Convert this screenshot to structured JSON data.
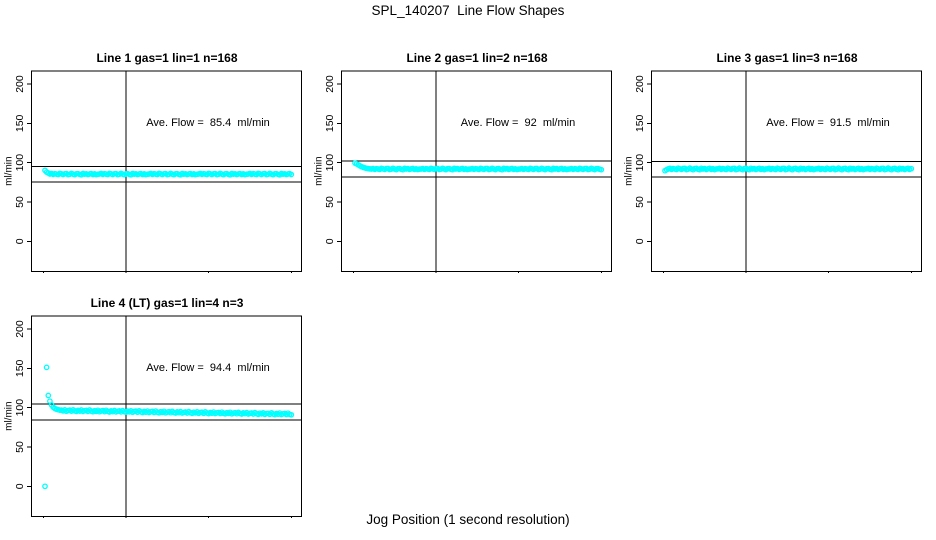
{
  "figure": {
    "title": "SPL_140207  Line Flow Shapes",
    "xlabel": "Jog Position (1 second resolution)",
    "ylabel": "ml/min",
    "point_color": "#00FFFF",
    "line_color": "#000000"
  },
  "chart_data": [
    {
      "type": "scatter",
      "title": "Line 1 gas=1 lin=1 n=168",
      "annotation": "Ave. Flow =  85.4  ml/min",
      "ave_flow": 85.4,
      "ylabel": "ml/min",
      "xticks": [
        0,
        50,
        100,
        150
      ],
      "yticks": [
        0,
        50,
        100,
        150,
        200
      ],
      "xlim": [
        -7,
        156
      ],
      "ylim": [
        -38,
        216
      ],
      "grid": false,
      "legend": "none",
      "vline_x": 50,
      "hlines": [
        95.4,
        75.4
      ],
      "x_rule": {
        "start": 1,
        "step": 1,
        "count": 150
      },
      "y": [
        90.2,
        88.0,
        86.8,
        85.6,
        86.2,
        85.1,
        86.0,
        85.4,
        84.9,
        86.4,
        85.7,
        85.0,
        85.9,
        86.1,
        84.8,
        85.3,
        86.3,
        85.5,
        84.7,
        85.8,
        86.0,
        85.2,
        84.6,
        86.2,
        85.4,
        85.9,
        84.9,
        85.6,
        86.1,
        85.0,
        85.7,
        84.8,
        85.3,
        85.6,
        86.2,
        85.1,
        86.0,
        85.4,
        84.9,
        86.4,
        85.7,
        85.0,
        85.9,
        86.1,
        84.8,
        85.3,
        86.3,
        85.5,
        84.7,
        85.8,
        86.0,
        85.2,
        84.6,
        86.2,
        85.4,
        85.9,
        84.9,
        85.6,
        86.1,
        85.0,
        85.7,
        84.8,
        85.3,
        85.6,
        86.2,
        85.1,
        86.0,
        85.4,
        84.9,
        86.4,
        85.7,
        85.0,
        85.9,
        86.1,
        84.8,
        85.3,
        86.3,
        85.5,
        84.7,
        85.8,
        86.0,
        85.2,
        84.6,
        86.2,
        85.4,
        85.9,
        84.9,
        85.6,
        86.1,
        85.0,
        85.7,
        84.8,
        85.3,
        85.6,
        86.2,
        85.1,
        86.0,
        85.4,
        84.9,
        86.4,
        85.7,
        85.0,
        85.9,
        86.1,
        84.8,
        85.3,
        86.3,
        85.5,
        84.7,
        85.8,
        86.0,
        85.2,
        84.6,
        86.2,
        85.4,
        85.9,
        84.9,
        85.6,
        86.1,
        85.0,
        85.7,
        84.8,
        85.3,
        85.6,
        86.2,
        85.1,
        86.0,
        85.4,
        84.9,
        86.4,
        85.7,
        85.0,
        85.9,
        86.1,
        84.8,
        85.3,
        86.3,
        85.5,
        84.7,
        85.8,
        86.0,
        85.2,
        84.6,
        86.2,
        85.4,
        85.9,
        84.9,
        85.6,
        86.1,
        85.0
      ]
    },
    {
      "type": "scatter",
      "title": "Line 2 gas=1 lin=2 n=168",
      "annotation": "Ave. Flow =  92  ml/min",
      "ave_flow": 92,
      "ylabel": "ml/min",
      "xticks": [
        0,
        50,
        100,
        150
      ],
      "yticks": [
        0,
        50,
        100,
        150,
        200
      ],
      "xlim": [
        -7,
        156
      ],
      "ylim": [
        -38,
        216
      ],
      "grid": false,
      "legend": "none",
      "vline_x": 50,
      "hlines": [
        102,
        82
      ],
      "x_rule": {
        "start": 1,
        "step": 1,
        "count": 150
      },
      "y": [
        99.4,
        98.6,
        97.3,
        96.0,
        94.9,
        94.0,
        93.3,
        92.8,
        92.4,
        92.1,
        92.0,
        92.5,
        91.6,
        92.3,
        91.9,
        91.4,
        92.7,
        92.1,
        91.5,
        92.4,
        92.6,
        91.3,
        91.8,
        92.8,
        92.0,
        91.2,
        92.3,
        92.5,
        91.7,
        91.1,
        92.7,
        91.9,
        92.4,
        91.4,
        92.1,
        92.6,
        91.5,
        92.2,
        91.3,
        91.8,
        92.0,
        92.5,
        91.6,
        92.3,
        91.9,
        91.4,
        92.7,
        92.1,
        91.5,
        92.4,
        92.6,
        91.3,
        91.8,
        92.8,
        92.0,
        91.2,
        92.3,
        92.5,
        91.7,
        91.1,
        92.7,
        91.9,
        92.4,
        91.4,
        92.1,
        92.6,
        91.5,
        92.2,
        91.3,
        91.8,
        92.0,
        92.5,
        91.6,
        92.3,
        91.9,
        91.4,
        92.7,
        92.1,
        91.5,
        92.4,
        92.6,
        91.3,
        91.8,
        92.8,
        92.0,
        91.2,
        92.3,
        92.5,
        91.7,
        91.1,
        92.7,
        91.9,
        92.4,
        91.4,
        92.1,
        92.6,
        91.5,
        92.2,
        91.3,
        91.8,
        92.0,
        92.5,
        91.6,
        92.3,
        91.9,
        91.4,
        92.7,
        92.1,
        91.5,
        92.4,
        92.6,
        91.3,
        91.8,
        92.8,
        92.0,
        91.2,
        92.3,
        92.5,
        91.7,
        91.1,
        92.7,
        91.9,
        92.4,
        91.4,
        92.1,
        92.6,
        91.5,
        92.2,
        91.3,
        91.8,
        92.0,
        92.5,
        91.6,
        92.3,
        91.9,
        91.4,
        92.7,
        92.1,
        91.5,
        92.4,
        92.6,
        91.3,
        91.8,
        92.8,
        92.0,
        91.2,
        92.3,
        92.5,
        91.7,
        91.1
      ]
    },
    {
      "type": "scatter",
      "title": "Line 3 gas=1 lin=3 n=168",
      "annotation": "Ave. Flow =  91.5  ml/min",
      "ave_flow": 91.5,
      "ylabel": "ml/min",
      "xticks": [
        0,
        50,
        100,
        150
      ],
      "yticks": [
        0,
        50,
        100,
        150,
        200
      ],
      "xlim": [
        -7,
        156
      ],
      "ylim": [
        -38,
        216
      ],
      "grid": false,
      "legend": "none",
      "vline_x": 50,
      "hlines": [
        101.5,
        81.5
      ],
      "x_rule": {
        "start": 1,
        "step": 1,
        "count": 150
      },
      "y": [
        89.8,
        91.0,
        92.1,
        92.7,
        91.5,
        92.5,
        91.9,
        91.3,
        93.0,
        92.2,
        91.4,
        92.6,
        92.9,
        91.2,
        91.8,
        93.1,
        92.0,
        91.1,
        92.4,
        92.8,
        91.7,
        91.0,
        92.9,
        92.0,
        92.5,
        91.3,
        92.2,
        92.8,
        91.4,
        92.3,
        91.2,
        91.9,
        92.1,
        92.7,
        91.5,
        92.5,
        91.9,
        91.3,
        93.0,
        92.2,
        91.4,
        92.6,
        92.9,
        91.2,
        91.8,
        93.1,
        92.0,
        91.1,
        92.4,
        92.8,
        91.7,
        91.0,
        92.9,
        92.0,
        92.5,
        91.3,
        92.2,
        92.8,
        91.4,
        92.3,
        91.2,
        91.9,
        92.1,
        92.7,
        91.5,
        92.5,
        91.9,
        91.3,
        93.0,
        92.2,
        91.4,
        92.6,
        92.9,
        91.2,
        91.8,
        93.1,
        92.0,
        91.1,
        92.4,
        92.8,
        91.7,
        91.0,
        92.9,
        92.0,
        92.5,
        91.3,
        92.2,
        92.8,
        91.4,
        92.3,
        91.2,
        91.9,
        92.1,
        92.7,
        91.5,
        92.5,
        91.9,
        91.3,
        93.0,
        92.2,
        91.4,
        92.6,
        92.9,
        91.2,
        91.8,
        93.1,
        92.0,
        91.1,
        92.4,
        92.8,
        91.7,
        91.0,
        92.9,
        92.0,
        92.5,
        91.3,
        92.2,
        92.8,
        91.4,
        92.3,
        91.2,
        91.9,
        92.1,
        92.7,
        91.5,
        92.5,
        91.9,
        91.3,
        93.0,
        92.2,
        91.4,
        92.6,
        92.9,
        91.2,
        91.8,
        93.1,
        92.0,
        91.1,
        92.4,
        92.8,
        91.7,
        91.0,
        92.9,
        92.0,
        92.5,
        91.3,
        92.2,
        92.8,
        91.4,
        92.3
      ]
    },
    {
      "type": "scatter",
      "title": "Line 4 (LT) gas=1 lin=4 n=3",
      "annotation": "Ave. Flow =  94.4  ml/min",
      "ave_flow": 94.4,
      "ylabel": "ml/min",
      "xticks": [
        0,
        50,
        100,
        150
      ],
      "yticks": [
        0,
        50,
        100,
        150,
        200
      ],
      "xlim": [
        -7,
        156
      ],
      "ylim": [
        -38,
        216
      ],
      "grid": false,
      "legend": "none",
      "vline_x": 50,
      "hlines": [
        104.4,
        84.4
      ],
      "x_rule": {
        "start": 1,
        "step": 1,
        "count": 150
      },
      "y": [
        0.0,
        151.2,
        115.5,
        108.2,
        103.4,
        100.6,
        99.0,
        98.0,
        97.4,
        96.9,
        96.9,
        95.9,
        97.3,
        95.5,
        96.4,
        96.9,
        95.6,
        97.3,
        95.9,
        95.2,
        96.5,
        95.6,
        97.0,
        95.2,
        96.1,
        96.6,
        95.3,
        97.0,
        95.6,
        94.9,
        96.2,
        95.3,
        96.7,
        94.9,
        95.8,
        96.3,
        95.0,
        96.7,
        95.3,
        94.5,
        95.9,
        95.0,
        96.4,
        94.6,
        95.5,
        95.9,
        94.6,
        96.3,
        94.9,
        94.2,
        95.6,
        94.6,
        96.0,
        94.2,
        95.1,
        95.6,
        94.3,
        96.0,
        94.6,
        93.9,
        95.2,
        94.3,
        95.7,
        93.9,
        94.8,
        95.2,
        93.9,
        95.6,
        94.2,
        93.5,
        94.9,
        94.0,
        95.4,
        93.5,
        94.4,
        94.9,
        93.6,
        95.3,
        93.9,
        93.2,
        94.6,
        93.7,
        95.0,
        93.2,
        94.1,
        94.5,
        93.2,
        95.0,
        93.6,
        92.9,
        94.3,
        93.3,
        94.7,
        92.9,
        93.8,
        94.2,
        92.9,
        94.6,
        93.2,
        92.5,
        93.9,
        93.0,
        94.4,
        92.6,
        93.4,
        93.9,
        92.6,
        94.3,
        92.9,
        92.2,
        93.6,
        92.7,
        94.1,
        92.2,
        93.1,
        93.6,
        92.3,
        94.0,
        92.6,
        91.9,
        93.3,
        92.4,
        93.7,
        91.9,
        92.8,
        93.2,
        91.9,
        93.7,
        92.3,
        91.6,
        93.0,
        92.1,
        93.4,
        91.6,
        92.5,
        92.9,
        91.6,
        93.3,
        92.0,
        91.2,
        92.6,
        91.7,
        93.1,
        91.3,
        92.1,
        92.6,
        91.3,
        93.0,
        91.6,
        90.9
      ]
    }
  ]
}
